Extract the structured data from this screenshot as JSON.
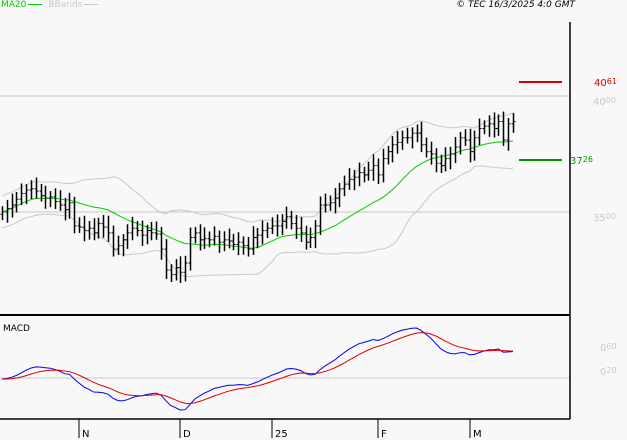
{
  "header": {
    "legend": [
      {
        "label": "MA20",
        "color": "#00cc00"
      },
      {
        "label": "BBands",
        "color": "#c8c8c8"
      }
    ],
    "copyright": "© TEC 16/3/2025 4:0 GMT"
  },
  "chart_data": [
    {
      "type": "ohlc",
      "panel": "price",
      "y_ticks": [
        "40.00",
        "35.00"
      ],
      "y_tick_values": [
        40,
        35
      ],
      "ylim": [
        31.6,
        42.0
      ],
      "grid": true,
      "x_ticks": [
        "N",
        "D",
        "25",
        "F",
        "M"
      ],
      "x_tick_bar_index": [
        16,
        37,
        56,
        78,
        97
      ],
      "closes": [
        35.0,
        35.15,
        35.3,
        35.55,
        35.8,
        35.95,
        36.0,
        35.9,
        35.7,
        35.6,
        35.65,
        35.45,
        35.3,
        35.1,
        35.4,
        34.4,
        34.35,
        34.2,
        34.3,
        34.1,
        34.5,
        34.35,
        34.1,
        33.4,
        33.55,
        33.8,
        34.1,
        34.3,
        34.2,
        34.0,
        34.2,
        34.1,
        34.05,
        33.4,
        32.5,
        32.3,
        32.6,
        32.4,
        32.8,
        33.9,
        34.1,
        33.8,
        33.85,
        33.8,
        33.95,
        33.7,
        33.8,
        33.75,
        33.6,
        33.7,
        33.55,
        33.4,
        33.9,
        34.0,
        34.2,
        34.3,
        34.4,
        34.4,
        34.6,
        34.8,
        34.5,
        34.3,
        34.1,
        33.7,
        33.9,
        34.4,
        35.3,
        35.3,
        35.4,
        35.6,
        36.0,
        36.2,
        36.4,
        36.5,
        36.7,
        36.6,
        36.8,
        37.0,
        36.6,
        37.3,
        37.6,
        37.9,
        38.0,
        38.2,
        38.2,
        38.4,
        38.4,
        37.9,
        37.6,
        37.5,
        37.1,
        37.0,
        37.3,
        37.5,
        37.8,
        38.2,
        38.1,
        37.6,
        38.2,
        38.6,
        38.7,
        38.8,
        38.6,
        38.9,
        38.1,
        38.8,
        38.9
      ],
      "overlays": [
        "MA20",
        "BBands"
      ],
      "levels": [
        {
          "value": "40.61",
          "color": "#dd0000"
        },
        {
          "value": "37.26",
          "color": "#009900"
        }
      ],
      "colors": {
        "bars": "#000000",
        "ma20": "#00cc00",
        "bbands": "#c8c8c8",
        "grid": "#c8c8c8"
      }
    },
    {
      "type": "line",
      "panel": "indicator",
      "title": "MACD",
      "y_ticks": [
        "0.60",
        "0.20"
      ],
      "series": [
        {
          "line": "macd",
          "color": "#0000ee"
        },
        {
          "line": "signal",
          "color": "#dd0000"
        }
      ]
    }
  ]
}
